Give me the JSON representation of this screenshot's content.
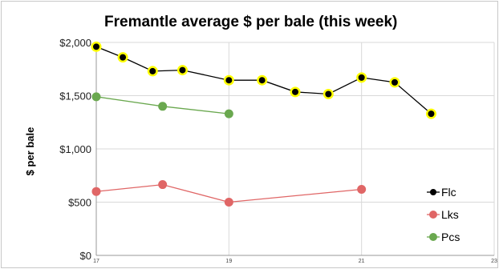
{
  "chart_data": {
    "type": "line",
    "title": "Fremantle average $ per bale (this week)",
    "ylabel": "$ per bale",
    "xlabel": "",
    "xlim": [
      17,
      23
    ],
    "ylim": [
      0,
      2000
    ],
    "x_ticks": [
      "17",
      "19",
      "21",
      "23"
    ],
    "y_ticks": [
      "$0",
      "$500",
      "$1,000",
      "$1,500",
      "$2,000"
    ],
    "y_tick_values": [
      0,
      500,
      1000,
      1500,
      2000
    ],
    "x_tick_values": [
      17,
      19,
      21,
      23
    ],
    "grid": true,
    "legend_position": "right",
    "series": [
      {
        "name": "Flc",
        "line_color": "#000000",
        "marker_fill": "#000000",
        "marker_halo": "#ffff00",
        "points": [
          {
            "x": 17.0,
            "y": 1960
          },
          {
            "x": 17.4,
            "y": 1860
          },
          {
            "x": 17.85,
            "y": 1730
          },
          {
            "x": 18.3,
            "y": 1740
          },
          {
            "x": 19.0,
            "y": 1645
          },
          {
            "x": 19.5,
            "y": 1645
          },
          {
            "x": 20.0,
            "y": 1535
          },
          {
            "x": 20.5,
            "y": 1515
          },
          {
            "x": 21.0,
            "y": 1670
          },
          {
            "x": 21.5,
            "y": 1625
          },
          {
            "x": 22.05,
            "y": 1330
          }
        ]
      },
      {
        "name": "Lks",
        "line_color": "#e06666",
        "marker_fill": "#e06666",
        "points": [
          {
            "x": 17.0,
            "y": 600
          },
          {
            "x": 18.0,
            "y": 665
          },
          {
            "x": 19.0,
            "y": 500
          },
          {
            "x": 21.0,
            "y": 620
          }
        ]
      },
      {
        "name": "Pcs",
        "line_color": "#6aa84f",
        "marker_fill": "#6aa84f",
        "points": [
          {
            "x": 17.0,
            "y": 1490
          },
          {
            "x": 18.0,
            "y": 1400
          },
          {
            "x": 19.0,
            "y": 1330
          }
        ]
      }
    ]
  }
}
